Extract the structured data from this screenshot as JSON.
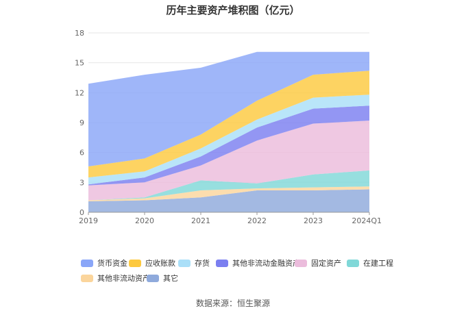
{
  "title": "历年主要资产堆积图（亿元）",
  "source": "数据来源：恒生聚源",
  "chart_data": {
    "type": "area",
    "stacked": true,
    "categories": [
      "2019",
      "2020",
      "2021",
      "2022",
      "2023",
      "2024Q1"
    ],
    "ylim": [
      0,
      18
    ],
    "yticks": [
      "0",
      "3",
      "6",
      "9",
      "12",
      "15",
      "18"
    ],
    "grid": true,
    "legend_position": "bottom",
    "series": [
      {
        "name": "其它",
        "color": "#8faadc",
        "values": [
          1.1,
          1.2,
          1.5,
          2.2,
          2.2,
          2.3
        ]
      },
      {
        "name": "其他非流动资产",
        "color": "#fbd59c",
        "values": [
          0.1,
          0.2,
          0.7,
          0.2,
          0.3,
          0.3
        ]
      },
      {
        "name": "在建工程",
        "color": "#80d8d8",
        "values": [
          0.0,
          0.1,
          1.0,
          0.5,
          1.3,
          1.6
        ]
      },
      {
        "name": "固定资产",
        "color": "#ebbcdc",
        "values": [
          1.5,
          1.5,
          1.5,
          4.3,
          5.1,
          5.0
        ]
      },
      {
        "name": "其他非流动金融资产",
        "color": "#7b7ff0",
        "values": [
          0.1,
          0.5,
          0.9,
          1.3,
          1.5,
          1.5
        ]
      },
      {
        "name": "存货",
        "color": "#aadff8",
        "values": [
          0.7,
          0.6,
          0.8,
          0.8,
          1.1,
          1.1
        ]
      },
      {
        "name": "应收账款",
        "color": "#fdc93f",
        "values": [
          1.1,
          1.3,
          1.4,
          1.9,
          2.3,
          2.4
        ]
      },
      {
        "name": "货币资金",
        "color": "#8aa6f8",
        "values": [
          8.3,
          8.4,
          6.7,
          4.9,
          2.3,
          1.9
        ]
      }
    ],
    "legend_order": [
      "货币资金",
      "应收账款",
      "存货",
      "其他非流动金融资产",
      "固定资产",
      "在建工程",
      "其他非流动资产",
      "其它"
    ]
  }
}
